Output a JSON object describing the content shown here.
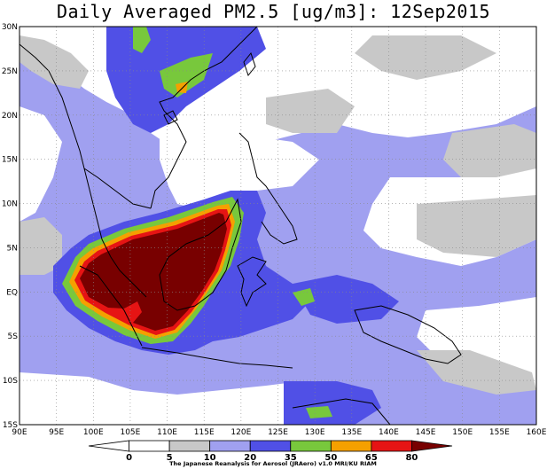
{
  "title": "Daily Averaged PM2.5 [ug/m3]: 12Sep2015",
  "map": {
    "lat_labels": [
      "30N",
      "25N",
      "20N",
      "15N",
      "10N",
      "5N",
      "EQ",
      "5S",
      "10S",
      "15S"
    ],
    "lon_labels": [
      "90E",
      "95E",
      "100E",
      "105E",
      "110E",
      "115E",
      "120E",
      "125E",
      "130E",
      "135E",
      "140E",
      "145E",
      "150E",
      "155E",
      "160E"
    ],
    "lon_range": [
      90,
      160
    ],
    "lat_range": [
      -15,
      30
    ]
  },
  "colorbar": {
    "labels": [
      "0",
      "5",
      "10",
      "20",
      "35",
      "50",
      "65",
      "80"
    ],
    "colors": [
      "#ffffff",
      "#ffffff",
      "#c8c8c8",
      "#a0a0f0",
      "#5050e6",
      "#78c83c",
      "#f5a000",
      "#e61414",
      "#780000"
    ],
    "credit": "The Japanese Reanalysis for Aerosol (JRAero) v1.0 MRI/KU RIAM"
  }
}
